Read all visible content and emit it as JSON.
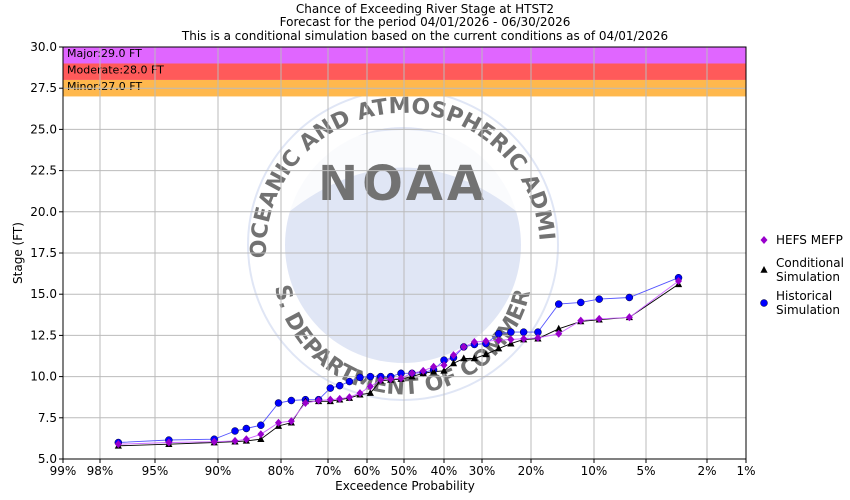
{
  "chart_data": {
    "type": "line",
    "title": [
      "Chance of Exceeding River Stage at HTST2",
      "Forecast for the period 04/01/2026 - 06/30/2026",
      "This is a conditional simulation based on the current conditions as of 04/01/2026"
    ],
    "xlabel": "Exceedence Probability",
    "ylabel": "Stage (FT)",
    "ylim": [
      5.0,
      30.0
    ],
    "yticks": [
      "5.0",
      "7.5",
      "10.0",
      "12.5",
      "15.0",
      "17.5",
      "20.0",
      "22.5",
      "25.0",
      "27.5",
      "30.0"
    ],
    "xtick_values": [
      99,
      98,
      95,
      90,
      80,
      70,
      60,
      50,
      40,
      30,
      20,
      10,
      5,
      2,
      1
    ],
    "xtick_labels": [
      "99%",
      "98%",
      "95%",
      "90%",
      "80%",
      "70%",
      "60%",
      "50%",
      "40%",
      "30%",
      "20%",
      "10%",
      "5%",
      "2%",
      "1%"
    ],
    "grid": true,
    "flood_categories": [
      {
        "name": "Major",
        "label": "Major:29.0 FT",
        "from": 29.0,
        "to": 30.0,
        "color": "#e066ff"
      },
      {
        "name": "Moderate",
        "label": "Moderate:28.0 FT",
        "from": 28.0,
        "to": 29.0,
        "color": "#ff5a5a"
      },
      {
        "name": "Minor",
        "label": "Minor:27.0 FT",
        "from": 27.0,
        "to": 28.0,
        "color": "#ffb84d"
      }
    ],
    "series": [
      {
        "name": "HEFS MEFP",
        "legend": [
          "HEFS MEFP"
        ],
        "color": "#9900cc",
        "line_color": "#cc66ff",
        "marker": "diamond",
        "x": [
          97.0,
          93.9,
          90.3,
          87.3,
          85.5,
          83.2,
          80.4,
          77.8,
          74.8,
          72.0,
          69.4,
          67.0,
          64.5,
          61.8,
          59.1,
          56.3,
          53.6,
          50.8,
          48.0,
          45.2,
          42.6,
          40.0,
          37.5,
          34.8,
          32.0,
          29.2,
          26.6,
          24.1,
          21.5,
          18.9,
          15.6,
          12.1,
          9.5,
          6.6,
          3.4
        ],
        "y": [
          5.9,
          6.0,
          6.05,
          6.1,
          6.2,
          6.5,
          7.2,
          7.3,
          8.4,
          8.55,
          8.6,
          8.65,
          8.75,
          9.0,
          9.4,
          9.8,
          9.85,
          9.9,
          10.2,
          10.35,
          10.6,
          10.7,
          11.3,
          11.8,
          12.1,
          12.15,
          12.2,
          12.25,
          12.3,
          12.35,
          12.6,
          13.4,
          13.5,
          13.6,
          15.8
        ]
      },
      {
        "name": "Conditional Simulation",
        "legend": [
          "Conditional",
          "Simulation"
        ],
        "color": "#000000",
        "line_color": "#000000",
        "marker": "triangle",
        "x": [
          97.0,
          93.9,
          90.3,
          87.3,
          85.5,
          83.2,
          80.4,
          77.8,
          74.8,
          72.0,
          69.4,
          67.0,
          64.5,
          61.8,
          59.1,
          56.3,
          53.6,
          50.8,
          48.0,
          45.2,
          42.6,
          40.0,
          37.5,
          34.8,
          32.0,
          29.2,
          26.6,
          24.1,
          21.5,
          18.9,
          15.6,
          12.1,
          9.5,
          6.6,
          3.4
        ],
        "y": [
          5.8,
          5.9,
          6.0,
          6.05,
          6.1,
          6.2,
          7.0,
          7.2,
          8.5,
          8.5,
          8.5,
          8.6,
          8.7,
          8.9,
          9.0,
          9.75,
          9.8,
          9.85,
          10.0,
          10.2,
          10.3,
          10.35,
          10.8,
          11.1,
          11.1,
          11.35,
          11.7,
          12.0,
          12.25,
          12.3,
          12.9,
          13.35,
          13.45,
          13.6,
          15.6
        ]
      },
      {
        "name": "Historical Simulation",
        "legend": [
          "Historical",
          "Simulation"
        ],
        "color": "#0000ff",
        "line_color": "#5555ff",
        "marker": "circle",
        "x": [
          97.0,
          93.9,
          90.3,
          87.3,
          85.5,
          83.2,
          80.4,
          77.8,
          74.8,
          72.0,
          69.4,
          67.0,
          64.5,
          61.8,
          59.1,
          56.3,
          53.6,
          50.8,
          48.0,
          45.2,
          42.6,
          40.0,
          37.5,
          34.8,
          32.0,
          29.2,
          26.6,
          24.1,
          21.5,
          18.9,
          15.6,
          12.1,
          9.5,
          6.6,
          3.4
        ],
        "y": [
          6.0,
          6.15,
          6.2,
          6.7,
          6.85,
          7.05,
          8.4,
          8.55,
          8.6,
          8.6,
          9.3,
          9.45,
          9.7,
          9.95,
          10.0,
          10.0,
          10.0,
          10.2,
          10.2,
          10.25,
          10.4,
          11.0,
          11.15,
          11.8,
          11.95,
          12.0,
          12.6,
          12.7,
          12.7,
          12.7,
          14.4,
          14.5,
          14.7,
          14.8,
          16.0
        ]
      }
    ]
  },
  "watermark": {
    "logo_text": "NOAA",
    "ring_top": "NATIONAL OCEANIC AND ATMOSPHERIC ADMINISTRATION",
    "ring_bottom": "U.S. DEPARTMENT OF COMMERCE",
    "color": "#c8d2ee"
  }
}
